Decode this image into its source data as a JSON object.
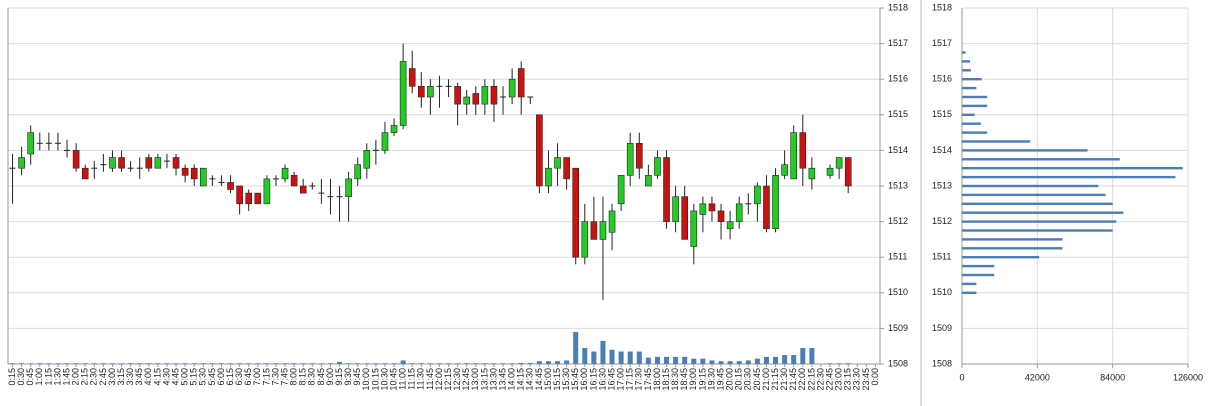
{
  "chart_data": [
    {
      "type": "candlestick",
      "categories": [
        "0:15",
        "0:30",
        "0:45",
        "1:00",
        "1:15",
        "1:30",
        "1:45",
        "2:00",
        "2:15",
        "2:30",
        "2:45",
        "3:00",
        "3:15",
        "3:30",
        "3:45",
        "4:00",
        "4:15",
        "4:30",
        "4:45",
        "5:00",
        "5:15",
        "5:30",
        "5:45",
        "6:00",
        "6:15",
        "6:30",
        "6:45",
        "7:00",
        "7:15",
        "7:30",
        "7:45",
        "8:00",
        "8:15",
        "8:30",
        "8:45",
        "9:00",
        "9:15",
        "9:30",
        "9:45",
        "10:00",
        "10:15",
        "10:30",
        "10:45",
        "11:00",
        "11:15",
        "11:30",
        "11:45",
        "12:00",
        "12:15",
        "12:30",
        "12:45",
        "13:00",
        "13:15",
        "13:30",
        "13:45",
        "14:00",
        "14:15",
        "14:30",
        "14:45",
        "15:00",
        "15:15",
        "15:30",
        "15:45",
        "16:00",
        "16:15",
        "16:30",
        "16:45",
        "17:00",
        "17:15",
        "17:30",
        "17:45",
        "18:00",
        "18:15",
        "18:30",
        "18:45",
        "19:00",
        "19:15",
        "19:30",
        "19:45",
        "20:00",
        "20:15",
        "20:30",
        "20:45",
        "21:00",
        "21:15",
        "21:30",
        "21:45",
        "22:00",
        "22:15",
        "22:30",
        "22:45",
        "23:00",
        "23:15",
        "23:30",
        "23:45",
        "0:00"
      ],
      "open": [
        1513.5,
        1513.5,
        1513.9,
        1514.2,
        1514.2,
        1514.2,
        1514.0,
        1514.0,
        1513.5,
        1513.5,
        1513.6,
        1513.5,
        1513.8,
        1513.5,
        1513.5,
        1513.8,
        1513.5,
        1513.7,
        1513.8,
        1513.5,
        1513.5,
        1513.0,
        1513.2,
        1513.1,
        1513.1,
        1513.0,
        1512.8,
        1512.8,
        1512.5,
        1513.2,
        1513.2,
        1513.3,
        1513.0,
        1513.0,
        1512.8,
        1512.7,
        1512.7,
        1512.7,
        1513.2,
        1513.5,
        1514.0,
        1514.0,
        1514.5,
        1514.7,
        1516.3,
        1515.8,
        1515.5,
        1515.8,
        1515.8,
        1515.8,
        1515.3,
        1515.6,
        1515.3,
        1515.8,
        1515.5,
        1515.5,
        1516.3,
        1515.5,
        1515.0,
        1513.0,
        1513.5,
        1513.8,
        1513.5,
        1511.0,
        1512.0,
        1511.5,
        1511.7,
        1512.5,
        1513.3,
        1514.2,
        1513.0,
        1513.3,
        1513.8,
        1512.0,
        1512.7,
        1511.3,
        1512.2,
        1512.5,
        1512.3,
        1511.8,
        1512.0,
        1512.5,
        1512.5,
        1513.0,
        1511.8,
        1513.3,
        1513.2,
        1514.5,
        1513.2,
        null,
        1513.3,
        1513.5,
        1513.8,
        null,
        null,
        null
      ],
      "high": [
        1513.9,
        1514.1,
        1514.7,
        1514.5,
        1514.5,
        1514.5,
        1514.3,
        1514.2,
        1513.6,
        1513.7,
        1513.9,
        1514.0,
        1514.0,
        1513.7,
        1513.8,
        1513.9,
        1513.9,
        1513.9,
        1513.9,
        1513.6,
        1513.6,
        1513.5,
        1513.3,
        1513.3,
        1513.3,
        1513.0,
        1512.9,
        1512.8,
        1513.3,
        1513.3,
        1513.6,
        1513.4,
        1513.2,
        1513.1,
        1513.2,
        1513.2,
        1513.0,
        1513.4,
        1513.8,
        1514.2,
        1514.3,
        1514.8,
        1514.9,
        1517.0,
        1516.8,
        1516.2,
        1516.0,
        1516.1,
        1516.0,
        1515.9,
        1515.7,
        1515.8,
        1516.0,
        1516.0,
        1515.8,
        1516.3,
        1516.5,
        1515.5,
        1515.0,
        1514.0,
        1514.2,
        1513.8,
        1513.5,
        1512.5,
        1512.7,
        1512.7,
        1512.5,
        1513.3,
        1514.5,
        1514.5,
        1513.6,
        1514.0,
        1514.0,
        1513.0,
        1513.0,
        1512.5,
        1512.7,
        1512.7,
        1512.5,
        1512.3,
        1512.7,
        1512.8,
        1513.1,
        1513.3,
        1513.5,
        1514.0,
        1514.7,
        1515.0,
        1513.8,
        null,
        1513.6,
        1513.8,
        1513.8,
        null,
        null,
        null
      ],
      "low": [
        1512.5,
        1513.3,
        1513.6,
        1514.0,
        1514.0,
        1514.0,
        1513.8,
        1513.4,
        1513.2,
        1513.2,
        1513.4,
        1513.4,
        1513.4,
        1513.4,
        1513.2,
        1513.4,
        1513.5,
        1513.5,
        1513.3,
        1513.1,
        1513.0,
        1513.0,
        1513.0,
        1513.0,
        1512.8,
        1512.2,
        1512.3,
        1512.5,
        1512.5,
        1513.0,
        1513.1,
        1513.0,
        1512.8,
        1512.9,
        1512.5,
        1512.2,
        1512.0,
        1512.0,
        1513.0,
        1513.2,
        1513.6,
        1513.9,
        1514.4,
        1514.6,
        1515.6,
        1515.2,
        1515.0,
        1515.2,
        1515.5,
        1514.7,
        1515.0,
        1515.0,
        1515.0,
        1514.8,
        1515.0,
        1515.3,
        1515.0,
        1515.3,
        1512.8,
        1512.8,
        1513.0,
        1512.9,
        1510.8,
        1510.8,
        1511.5,
        1509.8,
        1511.2,
        1512.3,
        1513.0,
        1513.2,
        1513.0,
        1513.2,
        1511.8,
        1511.7,
        1511.5,
        1510.8,
        1511.7,
        1512.0,
        1511.5,
        1511.5,
        1511.8,
        1512.2,
        1512.0,
        1511.7,
        1511.7,
        1513.2,
        1513.2,
        1513.0,
        1512.9,
        null,
        1513.2,
        1513.2,
        1512.8,
        null,
        null,
        null
      ],
      "close": [
        1513.5,
        1513.8,
        1514.5,
        1514.2,
        1514.2,
        1514.2,
        1514.0,
        1513.5,
        1513.2,
        1513.5,
        1513.6,
        1513.8,
        1513.5,
        1513.5,
        1513.5,
        1513.5,
        1513.8,
        1513.7,
        1513.5,
        1513.3,
        1513.2,
        1513.5,
        1513.2,
        1513.1,
        1512.9,
        1512.5,
        1512.5,
        1512.5,
        1513.2,
        1513.2,
        1513.5,
        1513.0,
        1512.8,
        1513.0,
        1512.8,
        1512.7,
        1512.7,
        1513.2,
        1513.6,
        1514.0,
        1514.0,
        1514.5,
        1514.7,
        1516.5,
        1515.8,
        1515.5,
        1515.8,
        1515.8,
        1515.8,
        1515.3,
        1515.5,
        1515.3,
        1515.8,
        1515.3,
        1515.5,
        1516.0,
        1515.5,
        1515.5,
        1513.0,
        1513.5,
        1513.8,
        1513.2,
        1511.0,
        1512.0,
        1511.5,
        1512.0,
        1512.3,
        1513.3,
        1514.2,
        1513.5,
        1513.3,
        1513.8,
        1512.0,
        1512.7,
        1511.5,
        1512.3,
        1512.5,
        1512.3,
        1512.0,
        1512.0,
        1512.5,
        1512.5,
        1513.0,
        1511.8,
        1513.3,
        1513.6,
        1514.5,
        1513.5,
        1513.5,
        null,
        1513.5,
        1513.8,
        1513.0,
        null,
        null,
        null
      ],
      "volume": [
        1508.02,
        1508.02,
        1508.02,
        1508.02,
        1508.02,
        1508.02,
        1508.02,
        1508.02,
        1508.02,
        1508.02,
        1508.02,
        1508.02,
        1508.02,
        1508.02,
        1508.02,
        1508.02,
        1508.02,
        1508.02,
        1508.02,
        1508.02,
        1508.02,
        1508.02,
        1508.02,
        1508.02,
        1508.02,
        1508.02,
        1508.02,
        1508.02,
        1508.02,
        1508.02,
        1508.02,
        1508.02,
        1508.02,
        1508.02,
        1508.02,
        1508.02,
        1508.06,
        1508.02,
        1508.02,
        1508.02,
        1508.02,
        1508.02,
        1508.02,
        1508.1,
        1508.02,
        1508.02,
        1508.02,
        1508.02,
        1508.02,
        1508.02,
        1508.02,
        1508.02,
        1508.02,
        1508.02,
        1508.02,
        1508.02,
        1508.03,
        1508.03,
        1508.08,
        1508.08,
        1508.08,
        1508.1,
        1508.9,
        1508.45,
        1508.35,
        1508.65,
        1508.4,
        1508.35,
        1508.35,
        1508.35,
        1508.18,
        1508.2,
        1508.2,
        1508.2,
        1508.2,
        1508.15,
        1508.15,
        1508.1,
        1508.08,
        1508.08,
        1508.08,
        1508.1,
        1508.15,
        1508.2,
        1508.2,
        1508.25,
        1508.25,
        1508.45,
        1508.45,
        null,
        1508.02,
        1508.02,
        1508.02,
        null,
        null,
        null
      ],
      "up_color": "#22cc22",
      "down_color": "#cc1111",
      "volume_color": "#4a7eb5",
      "ylim": [
        1508,
        1518
      ],
      "yticks": [
        1508,
        1509,
        1510,
        1511,
        1512,
        1513,
        1514,
        1515,
        1516,
        1517,
        1518
      ],
      "grid": true
    },
    {
      "type": "barh",
      "y": [
        1516.75,
        1516.5,
        1516.25,
        1516,
        1515.75,
        1515.5,
        1515.25,
        1515,
        1514.75,
        1514.5,
        1514.25,
        1514,
        1513.75,
        1513.5,
        1513.25,
        1513,
        1512.75,
        1512.5,
        1512.25,
        1512,
        1511.75,
        1511.5,
        1511.25,
        1511,
        1510.75,
        1510.5,
        1510.25,
        1510
      ],
      "values": [
        2000,
        4500,
        5000,
        11000,
        8000,
        14000,
        14000,
        7000,
        10500,
        14000,
        38000,
        70000,
        88000,
        123000,
        119000,
        76000,
        80000,
        84000,
        90000,
        86000,
        84000,
        56000,
        56000,
        43000,
        18000,
        18000,
        8000,
        8000
      ],
      "color": "#4a7eb5",
      "xlim": [
        0,
        126000
      ],
      "xticks": [
        0,
        42000,
        84000,
        126000
      ],
      "ylim": [
        1508,
        1518
      ],
      "yticks": [
        1508,
        1509,
        1510,
        1511,
        1512,
        1513,
        1514,
        1515,
        1516,
        1517,
        1518
      ],
      "grid": true
    }
  ]
}
